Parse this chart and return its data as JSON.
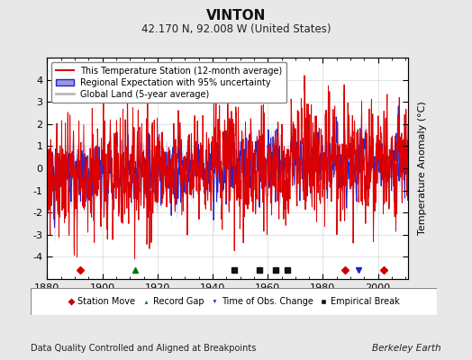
{
  "title": "VINTON",
  "subtitle": "42.170 N, 92.008 W (United States)",
  "ylabel": "Temperature Anomaly (°C)",
  "xlabel_note": "Data Quality Controlled and Aligned at Breakpoints",
  "credit": "Berkeley Earth",
  "year_start": 1880,
  "year_end": 2011,
  "ylim": [
    -5,
    5
  ],
  "yticks": [
    -4,
    -3,
    -2,
    -1,
    0,
    1,
    2,
    3,
    4
  ],
  "xticks": [
    1880,
    1900,
    1920,
    1940,
    1960,
    1980,
    2000
  ],
  "bg_color": "#e8e8e8",
  "plot_bg_color": "#ffffff",
  "grid_color": "#cccccc",
  "station_color": "#dd0000",
  "regional_color": "#2222cc",
  "regional_fill_color": "#9999dd",
  "global_color": "#bbbbbb",
  "legend_items": [
    "This Temperature Station (12-month average)",
    "Regional Expectation with 95% uncertainty",
    "Global Land (5-year average)"
  ],
  "station_markers": [
    {
      "year": 1892,
      "type": "station_move"
    },
    {
      "year": 1912,
      "type": "record_gap"
    },
    {
      "year": 1948,
      "type": "empirical_break"
    },
    {
      "year": 1957,
      "type": "empirical_break"
    },
    {
      "year": 1963,
      "type": "empirical_break"
    },
    {
      "year": 1967,
      "type": "empirical_break"
    },
    {
      "year": 1988,
      "type": "station_move"
    },
    {
      "year": 1993,
      "type": "time_of_obs"
    },
    {
      "year": 2002,
      "type": "station_move"
    }
  ]
}
